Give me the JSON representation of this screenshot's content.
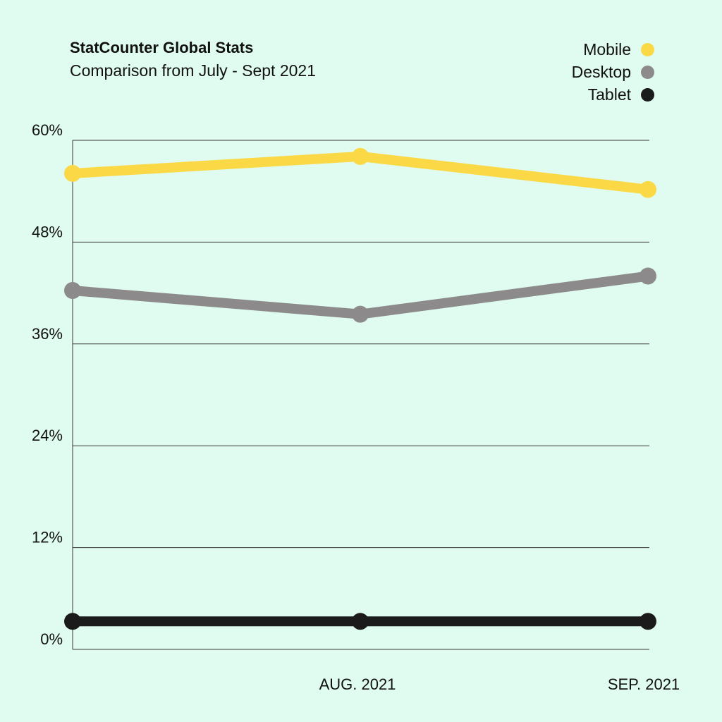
{
  "chart_data": {
    "type": "line",
    "title": "StatCounter Global Stats",
    "subtitle": "Comparison from July - Sept 2021",
    "x": [
      "",
      "AUG. 2021",
      "SEP. 2021"
    ],
    "ylim": [
      0,
      60
    ],
    "y_ticks": [
      "0%",
      "12%",
      "24%",
      "36%",
      "48%",
      "60%"
    ],
    "y_tick_values": [
      0,
      12,
      24,
      36,
      48,
      60
    ],
    "grid": true,
    "legend_position": "top-right",
    "series": [
      {
        "name": "Mobile",
        "color": "#fbd946",
        "values": [
          56.1,
          58.1,
          54.2
        ]
      },
      {
        "name": "Desktop",
        "color": "#8c8a8a",
        "values": [
          42.3,
          39.5,
          44.0
        ]
      },
      {
        "name": "Tablet",
        "color": "#1b1b1b",
        "values": [
          3.3,
          3.3,
          3.3
        ]
      }
    ]
  }
}
